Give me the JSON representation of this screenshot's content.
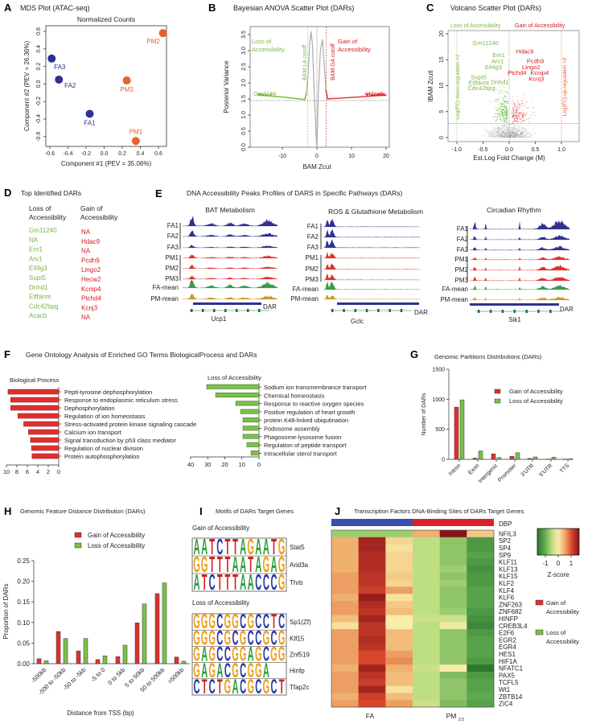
{
  "colors": {
    "fa": "#2e3192",
    "pm": "#e8602c",
    "gain": "#e0302e",
    "loss": "#7cc04a",
    "gain_text": "#d7191c",
    "loss_text": "#7ab648",
    "fa_mean": "#3a9a4a",
    "pm_mean": "#c9962a"
  },
  "chart_data": [
    {
      "panel": "A",
      "type": "scatter",
      "title": "MDS Plot (ATAC-seq)",
      "subtitle": "Normalized Counts",
      "xlabel": "Component #1 (PEV = 35.06%)",
      "ylabel": "Component #2 (PEV = 26.36%)",
      "xlim": [
        -0.65,
        0.7
      ],
      "ylim": [
        -0.7,
        0.65
      ],
      "xticks": [
        "-0.6",
        "-0.4",
        "-0.2",
        "0.0",
        "0.2",
        "0.4",
        "0.6"
      ],
      "yticks": [
        "-0.6",
        "-0.4",
        "-0.2",
        "0.0",
        "0.2",
        "0.4",
        "0.6"
      ],
      "points": [
        {
          "label": "FA1",
          "x": -0.16,
          "y": -0.34,
          "group": "FA"
        },
        {
          "label": "FA2",
          "x": -0.5,
          "y": 0.05,
          "group": "FA"
        },
        {
          "label": "FA3",
          "x": -0.58,
          "y": 0.29,
          "group": "FA"
        },
        {
          "label": "PM1",
          "x": 0.35,
          "y": -0.65,
          "group": "PM"
        },
        {
          "label": "PM2",
          "x": 0.65,
          "y": 0.58,
          "group": "PM"
        },
        {
          "label": "PM3",
          "x": 0.25,
          "y": 0.04,
          "group": "PM"
        }
      ]
    },
    {
      "panel": "B",
      "type": "scatter",
      "title": "Bayesian ANOVA Scatter Plot (DARs)",
      "xlabel": "BAM Zcut",
      "ylabel": "Posterior Variance",
      "xlim": [
        -18,
        21
      ],
      "ylim": [
        0,
        3.6
      ],
      "xticks": [
        "-10",
        "0",
        "10",
        "20"
      ],
      "yticks": [
        "0.0",
        "0.5",
        "1.0",
        "1.5",
        "2.0",
        "2.5",
        "3.0",
        "3.5"
      ],
      "loss_label": [
        "Loss of",
        "Accessibility"
      ],
      "gain_label": [
        "Gain of",
        "Accessibility"
      ],
      "la_cutoff_label": "BAM LA cutoff",
      "ga_cutoff_label": "BAM GA cutoff",
      "la_cutoff": -2.6,
      "ga_cutoff": 2.7,
      "variance_threshold": 1.45,
      "point_labels": [
        {
          "text": "Gm1124",
          "x": -14,
          "y": 1.62,
          "side": "loss"
        },
        {
          "text": "Hdac9",
          "x": 17,
          "y": 1.62,
          "side": "gain"
        }
      ]
    },
    {
      "panel": "C",
      "type": "scatter",
      "title": "Volcano Scatter Plot (DARs)",
      "xlabel": "Est.Log Fold Change (M)",
      "ylabel": "lBAM Zcutl",
      "xlim": [
        -1.1,
        1.3
      ],
      "ylim": [
        -1,
        20.5
      ],
      "xticks": [
        "-1.0",
        "-0.5",
        "0.0",
        "0.5",
        "1.0"
      ],
      "yticks": [
        "0",
        "5",
        "10",
        "15",
        "20"
      ],
      "loss_label": "Loss of Accessibility",
      "gain_label": "Gain of Accessibility",
      "down_label": "Log(FC) down-regulation >2",
      "up_label": "Log(FC) up-regulation >2",
      "zcut_threshold": 2.7,
      "genes": [
        {
          "text": "Gm11240",
          "x": -0.45,
          "y": 18.3,
          "side": "loss"
        },
        {
          "text": "Ern1",
          "x": -0.2,
          "y": 16.0,
          "side": "loss"
        },
        {
          "text": "Arv1",
          "x": -0.22,
          "y": 14.8,
          "side": "loss"
        },
        {
          "text": "Eif4g3",
          "x": -0.3,
          "y": 13.8,
          "side": "loss"
        },
        {
          "text": "Supt5",
          "x": -0.58,
          "y": 11.7,
          "side": "loss"
        },
        {
          "text": "Etfbkmt",
          "x": -0.58,
          "y": 10.8,
          "side": "loss"
        },
        {
          "text": "Dnhd1",
          "x": -0.3,
          "y": 10.8,
          "side": "loss"
        },
        {
          "text": "Cdc42bpg",
          "x": -0.53,
          "y": 9.9,
          "side": "loss"
        },
        {
          "text": "Hdac9",
          "x": 0.3,
          "y": 16.7,
          "side": "gain"
        },
        {
          "text": "Pcdh9",
          "x": 0.5,
          "y": 14.8,
          "side": "gain"
        },
        {
          "text": "Lingo2",
          "x": 0.42,
          "y": 13.8,
          "side": "gain"
        },
        {
          "text": "Ptchd4",
          "x": 0.15,
          "y": 12.7,
          "side": "gain"
        },
        {
          "text": "Kcnip4",
          "x": 0.52,
          "y": 12.7,
          "side": "gain"
        },
        {
          "text": "Kcnj3",
          "x": 0.52,
          "y": 11.7,
          "side": "gain"
        }
      ]
    },
    {
      "panel": "D",
      "type": "table",
      "title": "Top Identified DARs",
      "columns": [
        {
          "header": [
            "Loss of",
            "Accessibility"
          ]
        },
        {
          "header": [
            "Gain of",
            "Accessibility"
          ]
        }
      ],
      "loss": [
        "Gm11240",
        "NA",
        "Ern1",
        "Arv1",
        "Eif4g3",
        "Supt5",
        "Dnhd1",
        "Etfbkmt",
        "Cdc42bpg",
        "Acacb"
      ],
      "gain": [
        "NA",
        "Hdac9",
        "NA",
        "Pcdh9",
        "Lingo2",
        "Hecw2",
        "Kcnip4",
        "Ptchd4",
        "Kcnj3",
        "NA"
      ]
    },
    {
      "panel": "E",
      "type": "tracks",
      "title": "DNA Accessibility Peaks Profiles of DARS in Specific Pathways (DARs)",
      "samples": [
        "FA1",
        "FA2",
        "FA3",
        "PM1",
        "PM2",
        "PM3",
        "FA-mean",
        "PM-mean"
      ],
      "region_label": "DAR",
      "pathways": [
        {
          "name": "BAT Metabolism",
          "gene": "Ucp1"
        },
        {
          "name": "ROS & Glutathione Metabolism",
          "gene": "Gclc"
        },
        {
          "name": "Circadian Rhythm",
          "gene": "Sik1"
        }
      ]
    },
    {
      "panel": "F",
      "type": "bar",
      "title": "Gene Ontology Analysis  of Enriched GO Terms BiologicalProcess and DARs",
      "charts": [
        {
          "heading": "Biological Process",
          "orientation": "horizontal",
          "xlim": [
            10,
            0
          ],
          "xticks": [
            "10",
            "8",
            "6",
            "4",
            "2",
            "0"
          ],
          "categories": [
            "Pepti-tyrosine dephosphorylation",
            "Response to endoplasmic reticulum stress",
            "Dephosphorylation",
            "Regulation of ion homeostasis",
            "Stress-activated protein kinase signaling cascade",
            "Calcium ion transport",
            "Signal transduction by p53 class mediator",
            "Regulation of nuclear division",
            "Protein autophosphorylation"
          ],
          "values": [
            9.7,
            9.2,
            9.2,
            7.8,
            6.7,
            5.8,
            5.4,
            5.2,
            5.1
          ]
        },
        {
          "heading": "Loss of Accessibility",
          "orientation": "horizontal",
          "xlim": [
            40,
            0
          ],
          "xticks": [
            "40",
            "30",
            "20",
            "10",
            "0"
          ],
          "categories": [
            "Sodium ion transmembrance transport",
            "Chemical homeostasis",
            "Response to reactive oxygen species",
            "Positive regulation of heart growth",
            "protein K48-linked ubiqutination",
            "Podosome assembly",
            "Phagosome-lysosome fusion",
            "Regulation of peptide transport",
            "Intracellular sterol transport"
          ],
          "values": [
            30.6,
            25.4,
            13.6,
            10.8,
            9.4,
            9.4,
            9.4,
            7.1,
            4.7
          ]
        }
      ]
    },
    {
      "panel": "G",
      "type": "bar",
      "title": "Genomic Partitions Distributions (DARs)",
      "ylabel": "Number of DARs",
      "ylim": [
        0,
        1500
      ],
      "yticks": [
        "0",
        "500",
        "1000",
        "1500"
      ],
      "categories": [
        "Intron",
        "Exon",
        "Intergenic",
        "Promoter",
        "3'UTR",
        "5'UTR",
        "TTS"
      ],
      "series": [
        {
          "name": "Gain of Accessibility",
          "values": [
            870,
            20,
            90,
            50,
            15,
            5,
            5
          ]
        },
        {
          "name": "Loss of Accessibility",
          "values": [
            990,
            140,
            30,
            110,
            40,
            35,
            10
          ]
        }
      ],
      "legend": "top-right"
    },
    {
      "panel": "H",
      "type": "bar",
      "title": "Genomic Feature Distance Distribution (DARs)",
      "xlabel": "Distance from TSS (bp)",
      "ylabel": "Proportion of DARs",
      "ylim": [
        0,
        0.25
      ],
      "yticks": [
        "0.00",
        "0.05",
        "0.10",
        "0.15",
        "0.20",
        "0.25"
      ],
      "categories": [
        "-500kb",
        "-500 to -50kb",
        "-50 to -5kb",
        "-5 to 0",
        "0 to 5kb",
        "5 to 50kb",
        "50 to 500kb",
        ">500kb"
      ],
      "series": [
        {
          "name": "Gain of Accessibility",
          "values": [
            0.012,
            0.078,
            0.031,
            0.01,
            0.017,
            0.099,
            0.17,
            0.016
          ]
        },
        {
          "name": "Loss of Accessibility",
          "values": [
            0.007,
            0.061,
            0.061,
            0.019,
            0.045,
            0.145,
            0.196,
            0.006
          ]
        }
      ],
      "legend": "top"
    },
    {
      "panel": "I",
      "type": "table",
      "title": "Motifs of DARs Target Genes",
      "groups": [
        {
          "heading": "Gain of Accessibility",
          "motifs": [
            {
              "tf": "Stat5",
              "seq": "AATCTTAGAATG"
            },
            {
              "tf": "Arid3a",
              "seq": "GGTTTAATAGAG"
            },
            {
              "tf": "Thrb",
              "seq": "ATCTTTAACCCG"
            }
          ]
        },
        {
          "heading": "Loss of Accessibility",
          "motifs": [
            {
              "tf": "Sp1(Zf)",
              "seq": "GGGCGGCGCCTC"
            },
            {
              "tf": "Klf15",
              "seq": "GGGCGCGCCGCG"
            },
            {
              "tf": "Znf519",
              "seq": "GAGCCGGAGCGG"
            },
            {
              "tf": "Hinfp",
              "seq": "GAGACGCGGA"
            },
            {
              "tf": "Tfap2c",
              "seq": "CTCTGACGCGCT"
            }
          ]
        }
      ],
      "base_colors": {
        "A": "#2e9e3e",
        "C": "#2a3aa8",
        "G": "#f0a020",
        "T": "#d02020"
      }
    },
    {
      "panel": "J",
      "type": "heatmap",
      "title": "Transcription Factors DNA-Binding Sites of DARs Target Genes",
      "annotation_label": "DBP",
      "group_labels": [
        "FA",
        "PM",
        "2.5"
      ],
      "colorbar": {
        "label": "Z-score",
        "ticks": [
          "-1",
          "0",
          "1"
        ],
        "range": [
          -1.7,
          1.7
        ]
      },
      "legend": [
        {
          "label": [
            "Gain of",
            "Accessibility"
          ],
          "color": "#e0302e"
        },
        {
          "label": [
            "Loss of",
            "Accessibility"
          ],
          "color": "#7cc04a"
        }
      ],
      "rows": [
        "NFIL3",
        "SP2",
        "SP4",
        "SP9",
        "KLF11",
        "KLF13",
        "KLF15",
        "KLF2",
        "KLF4",
        "KLF6",
        "ZNF263",
        "ZNF682",
        "HINFP",
        "CREB3L4",
        "E2F6",
        "EGR2",
        "EGR4",
        "HES1",
        "HIF1A",
        "NFATC1",
        "PAX5",
        "TCFL5",
        "Wt1",
        "ZBTB14",
        "ZIC4"
      ],
      "values": [
        [
          -0.7,
          -0.7,
          -0.7,
          0.5,
          1.7,
          0.3
        ],
        [
          0.5,
          1.5,
          0.2,
          -0.5,
          -0.8,
          -1.3
        ],
        [
          0.5,
          1.5,
          0.1,
          -0.5,
          -0.8,
          -1.3
        ],
        [
          0.5,
          1.4,
          0.2,
          -0.5,
          -0.8,
          -1.2
        ],
        [
          0.5,
          1.4,
          0.2,
          -0.5,
          -0.8,
          -1.3
        ],
        [
          0.5,
          1.4,
          0.2,
          -0.5,
          -0.7,
          -1.4
        ],
        [
          0.6,
          1.3,
          0.3,
          -0.5,
          -0.8,
          -1.3
        ],
        [
          0.6,
          1.3,
          0.2,
          -0.5,
          -0.7,
          -1.3
        ],
        [
          0.6,
          1.2,
          0.6,
          -0.5,
          -0.8,
          -1.2
        ],
        [
          0.5,
          1.6,
          0.1,
          -0.5,
          -0.8,
          -1.2
        ],
        [
          0.6,
          1.4,
          0.3,
          -0.5,
          -0.8,
          -1.2
        ],
        [
          0.6,
          1.3,
          0.4,
          -0.5,
          -0.7,
          -1.3
        ],
        [
          0.4,
          1.5,
          0.0,
          -0.4,
          -0.4,
          -1.4
        ],
        [
          0.1,
          1.3,
          0.0,
          -0.5,
          -0.1,
          -1.5
        ],
        [
          0.6,
          1.3,
          0.4,
          -0.5,
          -0.8,
          -1.3
        ],
        [
          0.6,
          1.4,
          0.4,
          -0.5,
          -0.8,
          -1.2
        ],
        [
          0.6,
          1.3,
          0.4,
          -0.5,
          -0.8,
          -1.2
        ],
        [
          0.6,
          1.1,
          0.6,
          -0.5,
          -0.8,
          -1.2
        ],
        [
          0.6,
          1.1,
          0.7,
          -0.5,
          -0.8,
          -1.3
        ],
        [
          0.5,
          1.5,
          0.5,
          -0.4,
          0.0,
          -1.7
        ],
        [
          0.6,
          1.3,
          0.4,
          -0.5,
          -0.9,
          -1.3
        ],
        [
          0.6,
          1.2,
          0.4,
          -0.5,
          -0.8,
          -1.2
        ],
        [
          0.6,
          1.5,
          0.1,
          -0.5,
          -0.8,
          -1.2
        ],
        [
          0.5,
          1.2,
          0.4,
          -0.5,
          -0.8,
          -1.1
        ],
        [
          0.6,
          1.1,
          0.6,
          -0.4,
          -0.9,
          -1.2
        ]
      ]
    }
  ]
}
